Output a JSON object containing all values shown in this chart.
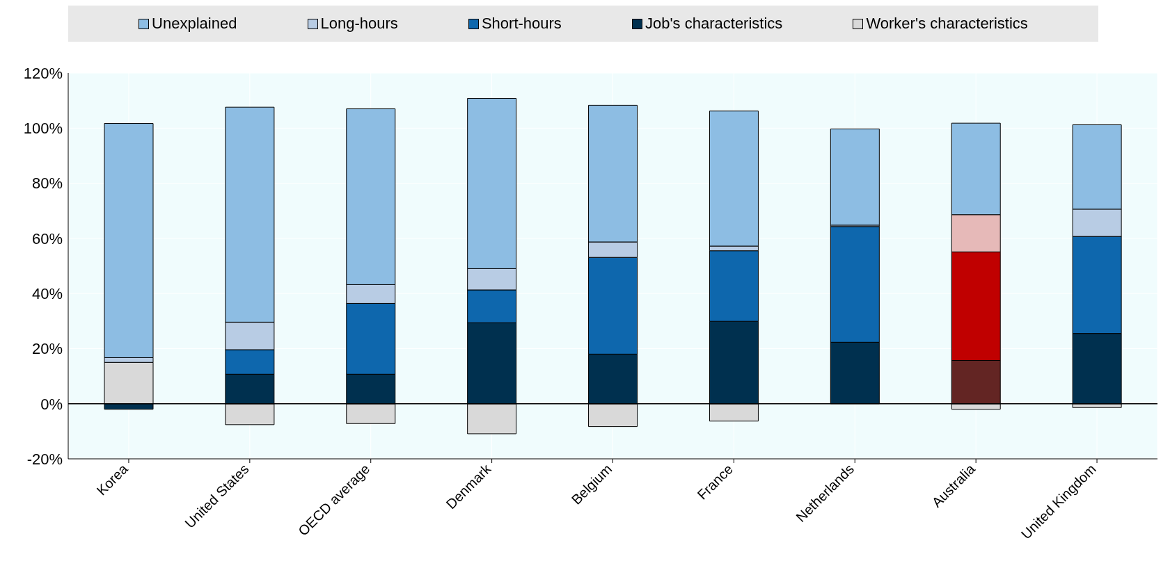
{
  "chart_data": {
    "type": "bar",
    "stacked": true,
    "categories": [
      "Korea",
      "United States",
      "OECD average",
      "Denmark",
      "Belgium",
      "France",
      "Netherlands",
      "Australia",
      "United Kingdom"
    ],
    "series": [
      {
        "name": "Worker's characteristics",
        "color": "#d9d9d9",
        "colors": [
          "#d9d9d9",
          "#d9d9d9",
          "#d9d9d9",
          "#d9d9d9",
          "#d9d9d9",
          "#d9d9d9",
          "#d9d9d9",
          "#d9d9d9",
          "#d9d9d9"
        ],
        "values": [
          15,
          -7.6,
          -7.2,
          -10.9,
          -8.3,
          -6.3,
          null,
          -2,
          -1.4
        ]
      },
      {
        "name": "Job's characteristics",
        "color": "#00304f",
        "colors": [
          "#00304f",
          "#00304f",
          "#00304f",
          "#00304f",
          "#00304f",
          "#00304f",
          "#00304f",
          "#632523",
          "#00304f"
        ],
        "values": [
          -2,
          10.7,
          10.7,
          29.4,
          18,
          29.9,
          22.3,
          15.7,
          25.5
        ]
      },
      {
        "name": "Short-hours",
        "color": "#0e67ad",
        "colors": [
          "#0e67ad",
          "#0e67ad",
          "#0e67ad",
          "#0e67ad",
          "#0e67ad",
          "#0e67ad",
          "#0e67ad",
          "#c00000",
          "#0e67ad"
        ],
        "values": [
          null,
          8.9,
          25.7,
          11.9,
          35.1,
          25.6,
          42,
          39.4,
          35.2
        ]
      },
      {
        "name": "Long-hours",
        "color": "#b8cce4",
        "colors": [
          "#b8cce4",
          "#b8cce4",
          "#b8cce4",
          "#b8cce4",
          "#b8cce4",
          "#b8cce4",
          "#b8cce4",
          "#e6b9b8",
          "#b8cce4"
        ],
        "values": [
          1.7,
          10,
          6.8,
          7.7,
          5.6,
          1.7,
          0.5,
          13.5,
          9.9
        ]
      },
      {
        "name": "Unexplained",
        "color": "#8dbde3",
        "colors": [
          "#8dbde3",
          "#8dbde3",
          "#8dbde3",
          "#8dbde3",
          "#8dbde3",
          "#8dbde3",
          "#8dbde3",
          "#8dbde3",
          "#8dbde3"
        ],
        "values": [
          85,
          78,
          63.8,
          61.8,
          49.6,
          49,
          34.9,
          33.2,
          30.6
        ]
      }
    ],
    "ylim": [
      -20,
      120
    ],
    "yticks": [
      {
        "value": -20,
        "label": "-20%"
      },
      {
        "value": 0,
        "label": "0%"
      },
      {
        "value": 20,
        "label": "20%"
      },
      {
        "value": 40,
        "label": "40%"
      },
      {
        "value": 60,
        "label": "60%"
      },
      {
        "value": 80,
        "label": "80%"
      },
      {
        "value": 100,
        "label": "100%"
      },
      {
        "value": 120,
        "label": "120%"
      }
    ],
    "grid": true,
    "legend": "top"
  }
}
